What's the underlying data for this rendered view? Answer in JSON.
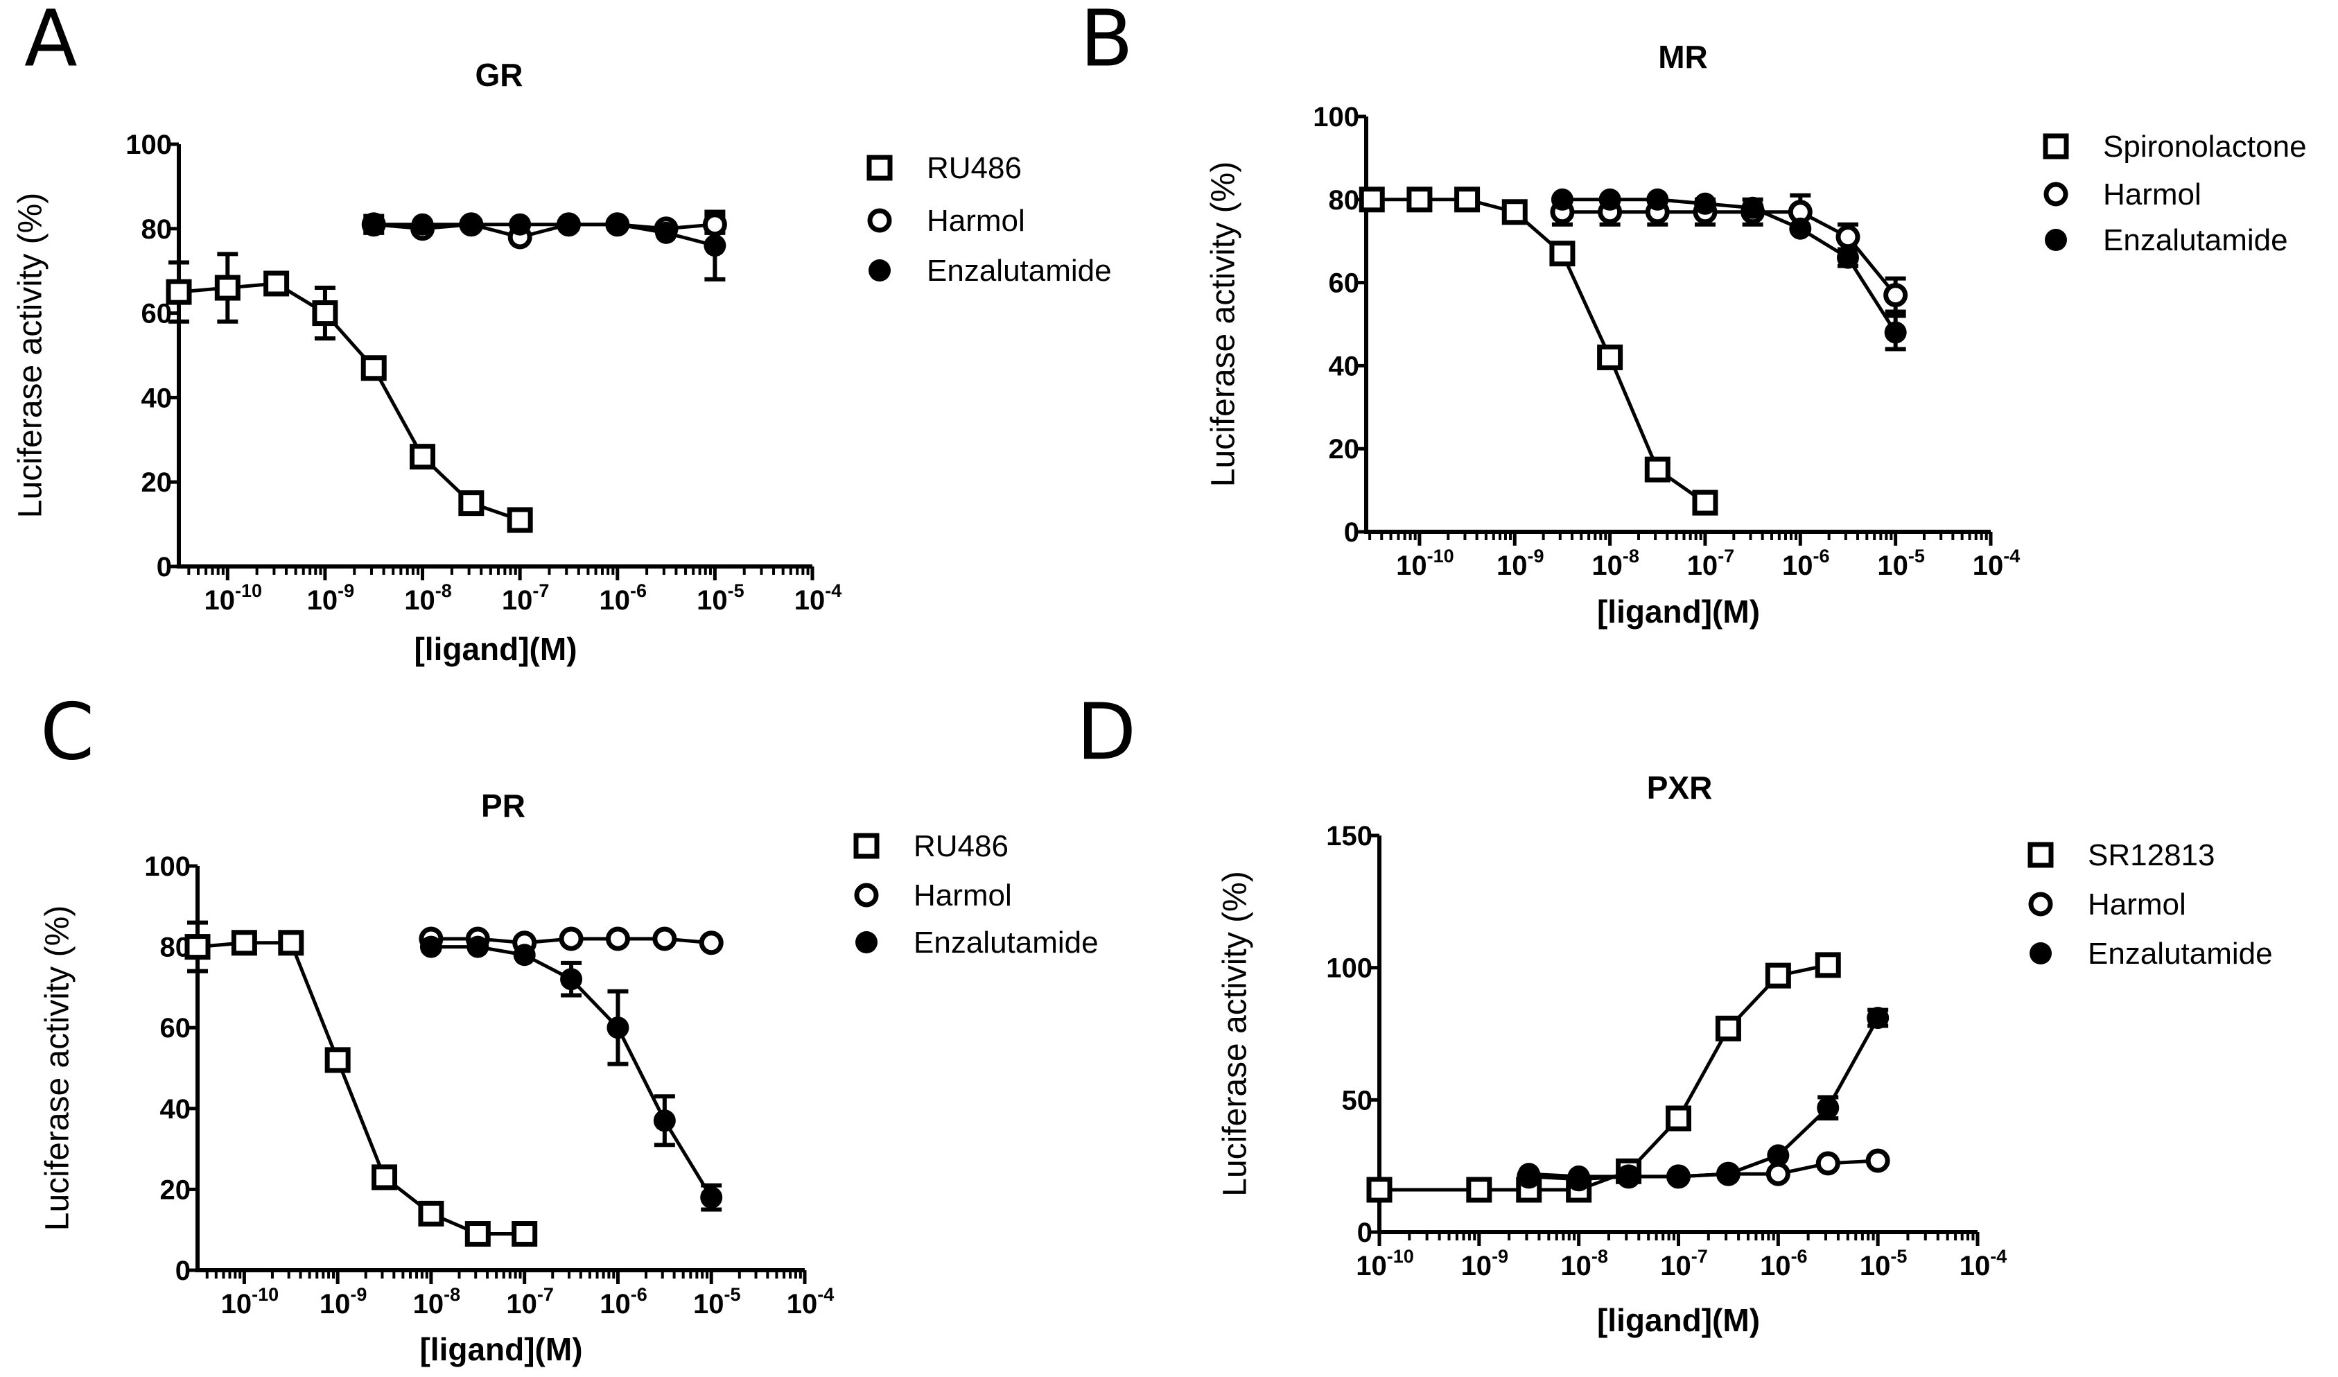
{
  "chart_data": [
    {
      "panel": "A",
      "type": "line",
      "title": "GR",
      "xlabel": "[ligand](M)",
      "ylabel": "Luciferase activity (%)",
      "xscale": "log10",
      "xlim_log10": [
        -10.5,
        -4
      ],
      "ylim": [
        0,
        100
      ],
      "x_ticks_log10": [
        -10,
        -9,
        -8,
        -7,
        -6,
        -5,
        -4
      ],
      "y_ticks": [
        0,
        20,
        40,
        60,
        80,
        100
      ],
      "legend_position": "right",
      "series": [
        {
          "name": "RU486",
          "marker": "open-square",
          "points": [
            [
              -10.5,
              65,
              7
            ],
            [
              -10,
              66,
              8
            ],
            [
              -9.5,
              67,
              0
            ],
            [
              -9,
              60,
              6
            ],
            [
              -8.5,
              47,
              0
            ],
            [
              -8,
              26,
              0
            ],
            [
              -7.5,
              15,
              0
            ],
            [
              -7,
              11,
              0
            ]
          ]
        },
        {
          "name": "Harmol",
          "marker": "open-circle",
          "points": [
            [
              -8.5,
              81,
              0
            ],
            [
              -8,
              80,
              0
            ],
            [
              -7.5,
              81,
              0
            ],
            [
              -7,
              78,
              0
            ],
            [
              -6.5,
              81,
              0
            ],
            [
              -6,
              81,
              0
            ],
            [
              -5.5,
              80,
              0
            ],
            [
              -5,
              81,
              2
            ]
          ]
        },
        {
          "name": "Enzalutamide",
          "marker": "filled-circle",
          "points": [
            [
              -8.5,
              81,
              2
            ],
            [
              -8,
              81,
              0
            ],
            [
              -7.5,
              81,
              0
            ],
            [
              -7,
              81,
              0
            ],
            [
              -6.5,
              81,
              0
            ],
            [
              -6,
              81,
              0
            ],
            [
              -5.5,
              79,
              0
            ],
            [
              -5,
              76,
              8
            ]
          ]
        }
      ]
    },
    {
      "panel": "B",
      "type": "line",
      "title": "MR",
      "xlabel": "[ligand](M)",
      "ylabel": "Luciferase activity (%)",
      "xscale": "log10",
      "xlim_log10": [
        -10.56,
        -4
      ],
      "ylim": [
        0,
        100
      ],
      "x_ticks_log10": [
        -10,
        -9,
        -8,
        -7,
        -6,
        -5,
        -4
      ],
      "y_ticks": [
        0,
        20,
        40,
        60,
        80,
        100
      ],
      "legend_position": "right",
      "series": [
        {
          "name": "Spironolactone",
          "marker": "open-square",
          "points": [
            [
              -10.5,
              80,
              0
            ],
            [
              -10,
              80,
              0
            ],
            [
              -9.5,
              80,
              0
            ],
            [
              -9,
              77,
              0
            ],
            [
              -8.5,
              67,
              0
            ],
            [
              -8,
              42,
              0
            ],
            [
              -7.5,
              15,
              0
            ],
            [
              -7,
              7,
              0
            ]
          ]
        },
        {
          "name": "Harmol",
          "marker": "open-circle",
          "points": [
            [
              -8.5,
              77,
              3
            ],
            [
              -8,
              77,
              3
            ],
            [
              -7.5,
              77,
              3
            ],
            [
              -7,
              77,
              3
            ],
            [
              -6.5,
              77,
              3
            ],
            [
              -6,
              77,
              4
            ],
            [
              -5.5,
              71,
              3
            ],
            [
              -5,
              57,
              4
            ]
          ]
        },
        {
          "name": "Enzalutamide",
          "marker": "filled-circle",
          "points": [
            [
              -8.5,
              80,
              0
            ],
            [
              -8,
              80,
              0
            ],
            [
              -7.5,
              80,
              0
            ],
            [
              -7,
              79,
              0
            ],
            [
              -6.5,
              78,
              0
            ],
            [
              -6,
              73,
              0
            ],
            [
              -5.5,
              66,
              2
            ],
            [
              -5,
              48,
              4
            ]
          ]
        }
      ]
    },
    {
      "panel": "C",
      "type": "line",
      "title": "PR",
      "xlabel": "[ligand](M)",
      "ylabel": "Luciferase activity (%)",
      "xscale": "log10",
      "xlim_log10": [
        -10.5,
        -4
      ],
      "ylim": [
        0,
        100
      ],
      "x_ticks_log10": [
        -10,
        -9,
        -8,
        -7,
        -6,
        -5,
        -4
      ],
      "y_ticks": [
        0,
        20,
        40,
        60,
        80,
        100
      ],
      "legend_position": "right",
      "series": [
        {
          "name": "RU486",
          "marker": "open-square",
          "points": [
            [
              -10.5,
              80,
              6
            ],
            [
              -10,
              81,
              0
            ],
            [
              -9.5,
              81,
              0
            ],
            [
              -9,
              52,
              0
            ],
            [
              -8.5,
              23,
              0
            ],
            [
              -8,
              14,
              0
            ],
            [
              -7.5,
              9,
              0
            ],
            [
              -7,
              9,
              0
            ]
          ]
        },
        {
          "name": "Harmol",
          "marker": "open-circle",
          "points": [
            [
              -8,
              82,
              0
            ],
            [
              -7.5,
              82,
              0
            ],
            [
              -7,
              81,
              0
            ],
            [
              -6.5,
              82,
              0
            ],
            [
              -6,
              82,
              0
            ],
            [
              -5.5,
              82,
              0
            ],
            [
              -5,
              81,
              0
            ]
          ]
        },
        {
          "name": "Enzalutamide",
          "marker": "filled-circle",
          "points": [
            [
              -8,
              80,
              0
            ],
            [
              -7.5,
              80,
              0
            ],
            [
              -7,
              78,
              0
            ],
            [
              -6.5,
              72,
              4
            ],
            [
              -6,
              60,
              9
            ],
            [
              -5.5,
              37,
              6
            ],
            [
              -5,
              18,
              3
            ]
          ]
        }
      ]
    },
    {
      "panel": "D",
      "type": "line",
      "title": "PXR",
      "xlabel": "[ligand](M)",
      "ylabel": "Luciferase activity (%)",
      "xscale": "log10",
      "xlim_log10": [
        -10,
        -4
      ],
      "ylim": [
        0,
        150
      ],
      "x_ticks_log10": [
        -10,
        -9,
        -8,
        -7,
        -6,
        -5,
        -4
      ],
      "y_ticks": [
        0,
        50,
        100,
        150
      ],
      "legend_position": "right",
      "series": [
        {
          "name": "SR12813",
          "marker": "open-square",
          "points": [
            [
              -10,
              16,
              0
            ],
            [
              -9,
              16,
              0
            ],
            [
              -8.5,
              16,
              0
            ],
            [
              -8,
              16,
              0
            ],
            [
              -7.5,
              23,
              0
            ],
            [
              -7,
              43,
              0
            ],
            [
              -6.5,
              77,
              3
            ],
            [
              -6,
              97,
              0
            ],
            [
              -5.5,
              101,
              0
            ]
          ]
        },
        {
          "name": "Harmol",
          "marker": "open-circle",
          "points": [
            [
              -8.5,
              21,
              0
            ],
            [
              -8,
              20,
              0
            ],
            [
              -7.5,
              21,
              0
            ],
            [
              -7,
              21,
              0
            ],
            [
              -6.5,
              22,
              0
            ],
            [
              -6,
              22,
              0
            ],
            [
              -5.5,
              26,
              0
            ],
            [
              -5,
              27,
              0
            ]
          ]
        },
        {
          "name": "Enzalutamide",
          "marker": "filled-circle",
          "points": [
            [
              -8.5,
              22,
              0
            ],
            [
              -8,
              21,
              0
            ],
            [
              -7.5,
              21,
              0
            ],
            [
              -7,
              21,
              0
            ],
            [
              -6.5,
              22,
              0
            ],
            [
              -6,
              29,
              0
            ],
            [
              -5.5,
              47,
              4
            ],
            [
              -5,
              81,
              3
            ]
          ]
        }
      ]
    }
  ],
  "colors": {
    "ink": "#000000",
    "background": "#ffffff"
  }
}
